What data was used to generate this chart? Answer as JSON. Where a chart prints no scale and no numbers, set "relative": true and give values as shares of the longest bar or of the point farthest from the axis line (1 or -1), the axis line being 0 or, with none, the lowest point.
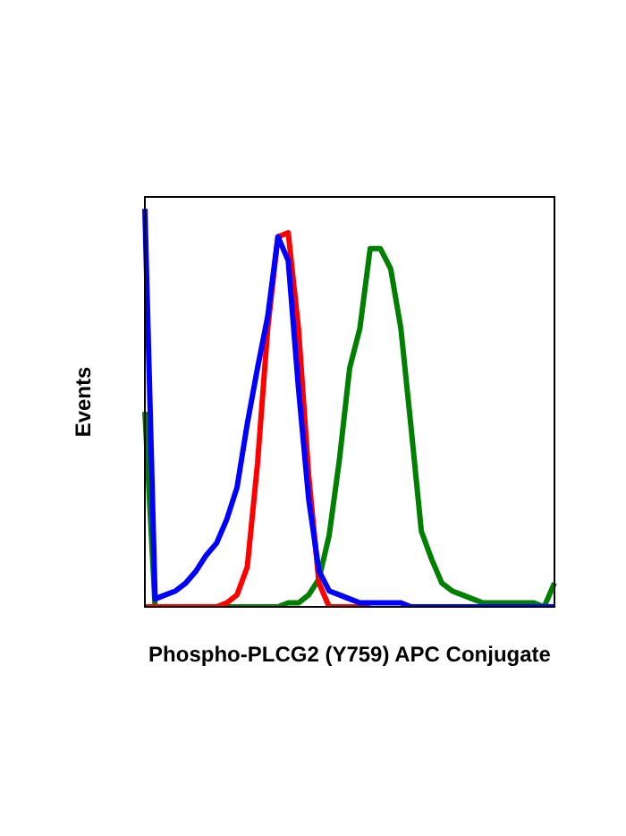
{
  "chart_data": {
    "type": "line",
    "xlabel": "Phospho-PLCG2 (Y759) APC Conjugate",
    "ylabel": "Events",
    "relative": true,
    "legend": false,
    "marker": "none",
    "line_style": "solid",
    "categories": [
      null,
      null,
      null,
      null,
      null,
      null,
      null,
      null,
      null,
      null,
      null,
      null,
      null,
      null,
      null,
      null,
      null,
      null,
      null,
      null,
      null,
      null,
      null,
      null,
      null,
      null,
      null,
      null,
      null,
      null,
      null,
      null,
      null,
      null,
      null,
      null,
      null,
      null,
      null,
      null,
      null
    ],
    "series": [
      {
        "color": "#0000ff",
        "values": [
          1.0,
          0.02,
          0.03,
          0.04,
          0.06,
          0.09,
          0.13,
          0.16,
          0.22,
          0.3,
          0.46,
          0.6,
          0.73,
          0.93,
          0.87,
          0.55,
          0.27,
          0.09,
          0.04,
          0.03,
          0.02,
          0.01,
          0.01,
          0.01,
          0.01,
          0.01,
          0,
          0,
          0,
          0,
          0,
          0,
          0,
          0,
          0,
          0,
          0,
          0,
          0,
          0,
          0
        ]
      },
      {
        "color": "#ff0000",
        "values": [
          0,
          0,
          0,
          0,
          0,
          0,
          0,
          0,
          0.01,
          0.03,
          0.1,
          0.36,
          0.7,
          0.93,
          0.94,
          0.7,
          0.33,
          0.06,
          0,
          0,
          0,
          0,
          0,
          null,
          null,
          null,
          null,
          null,
          null,
          null,
          null,
          null,
          null,
          null,
          null,
          null,
          null,
          null,
          null,
          null,
          null
        ]
      },
      {
        "color": "#008000",
        "values": [
          0.49,
          0,
          0,
          0,
          0,
          0,
          0,
          0,
          0,
          0,
          0,
          0,
          0,
          0,
          0.01,
          0.01,
          0.03,
          0.07,
          0.18,
          0.37,
          0.6,
          0.7,
          0.9,
          0.9,
          0.85,
          0.7,
          0.45,
          0.19,
          0.12,
          0.06,
          0.04,
          0.03,
          0.02,
          0.01,
          0.01,
          0.01,
          0.01,
          0.01,
          0.01,
          0,
          0.06
        ]
      }
    ]
  }
}
